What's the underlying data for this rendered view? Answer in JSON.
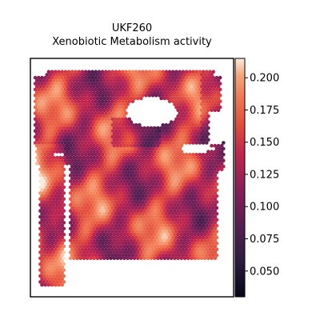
{
  "chart_data": {
    "type": "heatmap",
    "title": "UKF260",
    "subtitle": "Xenobiotic Metabolism activity",
    "xlabel": "",
    "ylabel": "",
    "colormap": "rocket",
    "colorbar": {
      "min": 0.03,
      "max": 0.215,
      "ticks": [
        0.05,
        0.075,
        0.1,
        0.125,
        0.15,
        0.175,
        0.2
      ],
      "tick_labels": [
        "0.050",
        "0.075",
        "0.100",
        "0.125",
        "0.150",
        "0.175",
        "0.200"
      ],
      "orientation": "vertical",
      "placement": "right"
    },
    "grid": false
  }
}
